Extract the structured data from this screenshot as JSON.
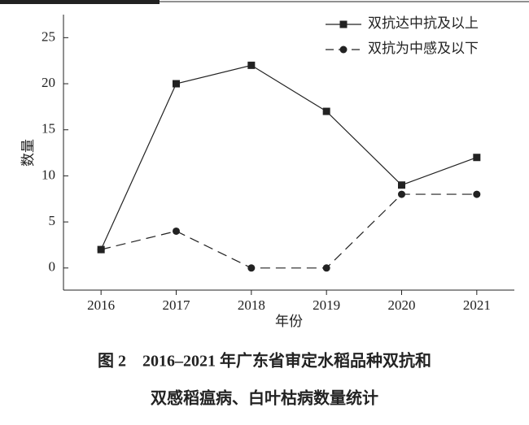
{
  "chart_data": {
    "type": "line",
    "caption": [
      "图 2　2016–2021 年广东省审定水稻品种双抗和",
      "双感稻瘟病、白叶枯病数量统计"
    ],
    "xlabel": "年份",
    "ylabel": "数量",
    "x": [
      2016,
      2017,
      2018,
      2019,
      2020,
      2021
    ],
    "series": [
      {
        "name": "双抗达中抗及以上",
        "color": "#222222",
        "line_style": "solid",
        "marker": "square",
        "values": [
          2,
          20,
          22,
          17,
          9,
          12
        ]
      },
      {
        "name": "双抗为中感及以下",
        "color": "#222222",
        "line_style": "dashed",
        "marker": "circle",
        "values": [
          2,
          4,
          0,
          0,
          8,
          8
        ]
      }
    ],
    "xlim": [
      2015.5,
      2021.5
    ],
    "xticks": [
      2016,
      2017,
      2018,
      2019,
      2020,
      2021
    ],
    "ylim": [
      -2.4,
      27.5
    ],
    "yticks": [
      0,
      5,
      10,
      15,
      20,
      25
    ],
    "legend": "upper right"
  }
}
